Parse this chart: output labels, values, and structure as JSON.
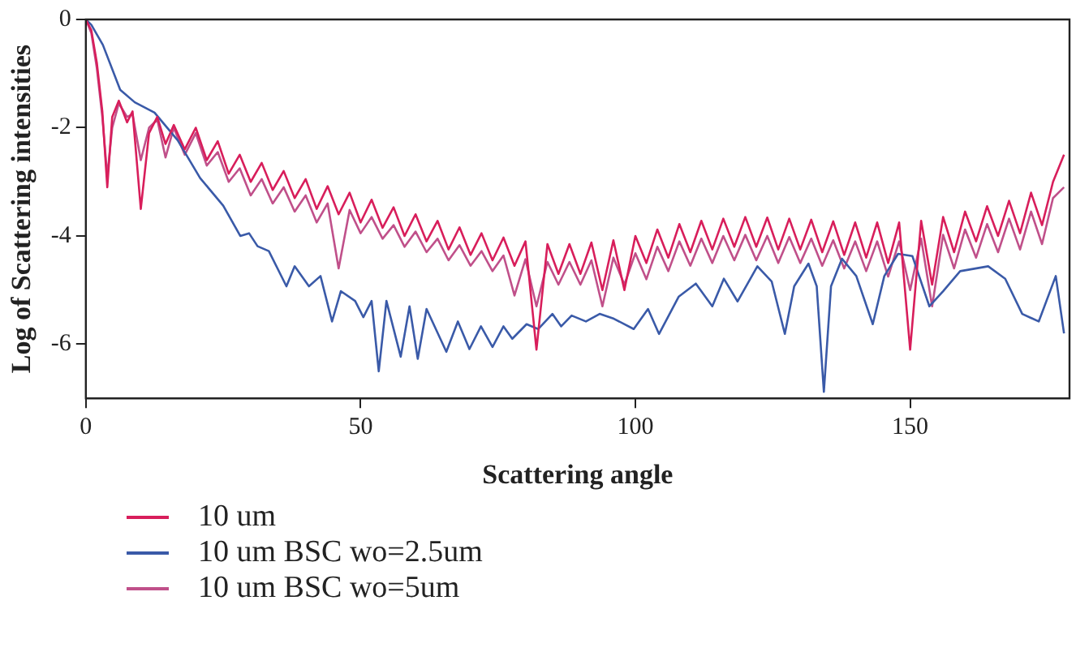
{
  "chart_data": {
    "type": "line",
    "xlabel": "Scattering angle",
    "ylabel": "Log of Scattering intensities",
    "xlim": [
      0,
      179
    ],
    "xticks": [
      0,
      50,
      100,
      150
    ],
    "ylim": [
      -7,
      0
    ],
    "yticks": [
      0,
      -2,
      -4,
      -6
    ],
    "grid": false,
    "legend": "bottom",
    "marker": "none",
    "line_style": "solid",
    "series": [
      {
        "name": "10 um",
        "color": "#d81e5b",
        "x": [
          0,
          1,
          2,
          3,
          3.9,
          4.8,
          6,
          7.5,
          8.5,
          10,
          11.5,
          13,
          14.5,
          16,
          18,
          20,
          22,
          24,
          26,
          28,
          30,
          32,
          34,
          36,
          38,
          40,
          42,
          44,
          46,
          48,
          50,
          52,
          54,
          56,
          58,
          60,
          62,
          64,
          66,
          68,
          70,
          72,
          74,
          76,
          78,
          80,
          82,
          84,
          86,
          88,
          90,
          92,
          94,
          96,
          98,
          100,
          102,
          104,
          106,
          108,
          110,
          112,
          114,
          116,
          118,
          120,
          122,
          124,
          126,
          128,
          130,
          132,
          134,
          136,
          138,
          140,
          142,
          144,
          146,
          148,
          150,
          152,
          154,
          156,
          158,
          160,
          162,
          164,
          166,
          168,
          170,
          172,
          174,
          176,
          178
        ],
        "values": [
          0,
          -0.2,
          -0.8,
          -1.7,
          -3.1,
          -1.8,
          -1.5,
          -1.9,
          -1.7,
          -3.5,
          -2.1,
          -1.8,
          -2.3,
          -1.95,
          -2.4,
          -2.0,
          -2.6,
          -2.25,
          -2.85,
          -2.5,
          -3.0,
          -2.65,
          -3.15,
          -2.8,
          -3.3,
          -2.95,
          -3.5,
          -3.08,
          -3.6,
          -3.2,
          -3.75,
          -3.33,
          -3.85,
          -3.47,
          -4.0,
          -3.6,
          -4.1,
          -3.72,
          -4.25,
          -3.84,
          -4.35,
          -3.95,
          -4.45,
          -4.03,
          -4.55,
          -4.1,
          -6.1,
          -4.15,
          -4.7,
          -4.15,
          -4.7,
          -4.12,
          -5.0,
          -4.08,
          -5.0,
          -4.0,
          -4.5,
          -3.88,
          -4.4,
          -3.78,
          -4.3,
          -3.72,
          -4.25,
          -3.68,
          -4.2,
          -3.65,
          -4.2,
          -3.66,
          -4.25,
          -3.68,
          -4.25,
          -3.7,
          -4.3,
          -3.73,
          -4.35,
          -3.75,
          -4.4,
          -3.75,
          -4.5,
          -3.75,
          -6.1,
          -3.72,
          -4.9,
          -3.65,
          -4.3,
          -3.55,
          -4.1,
          -3.45,
          -4.0,
          -3.35,
          -3.95,
          -3.2,
          -3.8,
          -3.0,
          -2.5
        ]
      },
      {
        "name": "10 um BSC wo=2.5um",
        "color": "#3a5aa8",
        "x": [
          0,
          1,
          3.1,
          6.25,
          8.9,
          12.5,
          16.7,
          20.8,
          25,
          28.1,
          29.7,
          31.25,
          33.3,
          36.5,
          38,
          40.6,
          42.7,
          44.8,
          46.4,
          49,
          50.5,
          52,
          53.3,
          54.7,
          57.3,
          58.9,
          60.4,
          62,
          65.6,
          67.7,
          69.8,
          71.9,
          74,
          76,
          77.6,
          80.2,
          82.3,
          84.9,
          86.5,
          88.4,
          91,
          93.5,
          96.1,
          99.7,
          102.3,
          104.3,
          107.9,
          111,
          114,
          116.1,
          118.6,
          122.2,
          124.8,
          127.2,
          128.9,
          131.5,
          133,
          134.3,
          135.6,
          137.6,
          140.2,
          143.2,
          145.3,
          147.8,
          150.4,
          153.5,
          156,
          159.1,
          164.2,
          167.3,
          170.4,
          173.4,
          176.5,
          178
        ],
        "values": [
          0,
          -0.1,
          -0.47,
          -1.3,
          -1.53,
          -1.72,
          -2.23,
          -2.93,
          -3.44,
          -4.0,
          -3.95,
          -4.19,
          -4.28,
          -4.93,
          -4.56,
          -4.93,
          -4.74,
          -5.58,
          -5.02,
          -5.2,
          -5.5,
          -5.2,
          -6.5,
          -5.2,
          -6.23,
          -5.3,
          -6.27,
          -5.35,
          -6.14,
          -5.58,
          -6.09,
          -5.67,
          -6.05,
          -5.67,
          -5.9,
          -5.63,
          -5.72,
          -5.44,
          -5.67,
          -5.47,
          -5.58,
          -5.44,
          -5.53,
          -5.72,
          -5.35,
          -5.81,
          -5.12,
          -4.88,
          -5.3,
          -4.79,
          -5.21,
          -4.56,
          -4.84,
          -5.81,
          -4.93,
          -4.51,
          -4.93,
          -6.88,
          -4.93,
          -4.42,
          -4.74,
          -5.63,
          -4.74,
          -4.33,
          -4.37,
          -5.3,
          -5.02,
          -4.65,
          -4.56,
          -4.79,
          -5.44,
          -5.58,
          -4.74,
          -5.8
        ]
      },
      {
        "name": "10 um BSC wo=5um",
        "color": "#c0508a",
        "x": [
          0,
          1,
          2,
          3,
          3.9,
          4.8,
          6,
          7.5,
          8.5,
          10,
          11.5,
          13,
          14.5,
          16,
          18,
          20,
          22,
          24,
          26,
          28,
          30,
          32,
          34,
          36,
          38,
          40,
          42,
          44,
          46,
          48,
          50,
          52,
          54,
          56,
          58,
          60,
          62,
          64,
          66,
          68,
          70,
          72,
          74,
          76,
          78,
          80,
          82,
          84,
          86,
          88,
          90,
          92,
          94,
          96,
          98,
          100,
          102,
          104,
          106,
          108,
          110,
          112,
          114,
          116,
          118,
          120,
          122,
          124,
          126,
          128,
          130,
          132,
          134,
          136,
          138,
          140,
          142,
          144,
          146,
          148,
          150,
          152,
          154,
          156,
          158,
          160,
          162,
          164,
          166,
          168,
          170,
          172,
          174,
          176,
          178
        ],
        "values": [
          0,
          -0.25,
          -0.9,
          -1.8,
          -2.9,
          -2.0,
          -1.55,
          -1.8,
          -1.75,
          -2.6,
          -2.0,
          -1.85,
          -2.55,
          -2.0,
          -2.5,
          -2.1,
          -2.7,
          -2.45,
          -3.0,
          -2.75,
          -3.25,
          -2.95,
          -3.4,
          -3.1,
          -3.55,
          -3.25,
          -3.75,
          -3.4,
          -4.6,
          -3.52,
          -3.95,
          -3.65,
          -4.05,
          -3.8,
          -4.2,
          -3.92,
          -4.3,
          -4.05,
          -4.45,
          -4.17,
          -4.55,
          -4.28,
          -4.65,
          -4.36,
          -5.1,
          -4.43,
          -5.3,
          -4.48,
          -4.9,
          -4.48,
          -4.9,
          -4.45,
          -5.3,
          -4.4,
          -4.9,
          -4.32,
          -4.8,
          -4.2,
          -4.65,
          -4.1,
          -4.55,
          -4.05,
          -4.5,
          -4.0,
          -4.45,
          -3.98,
          -4.45,
          -4.0,
          -4.5,
          -4.02,
          -4.5,
          -4.05,
          -4.55,
          -4.08,
          -4.6,
          -4.1,
          -4.65,
          -4.1,
          -4.75,
          -4.1,
          -5.0,
          -4.05,
          -5.3,
          -3.98,
          -4.6,
          -3.88,
          -4.4,
          -3.78,
          -4.3,
          -3.68,
          -4.25,
          -3.55,
          -4.15,
          -3.3,
          -3.1
        ]
      }
    ]
  }
}
